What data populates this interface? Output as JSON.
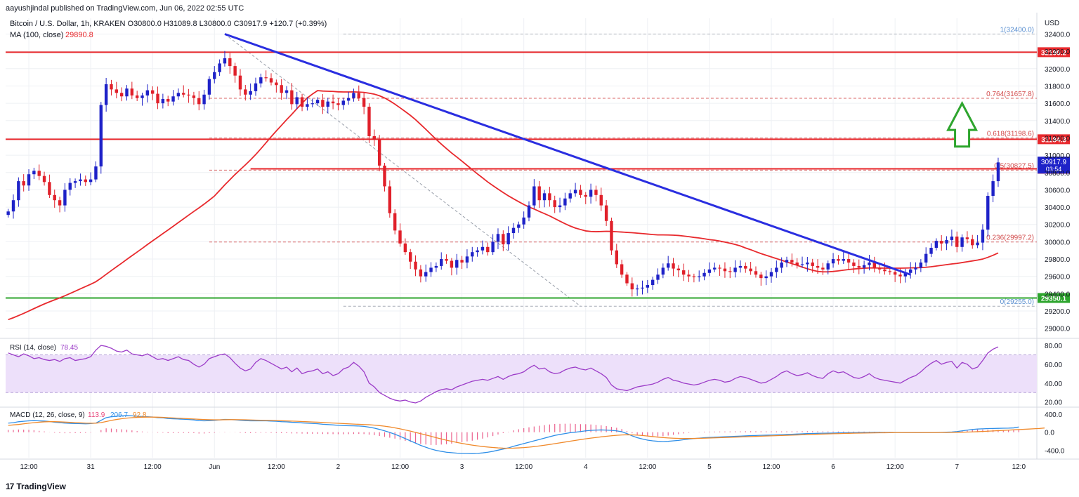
{
  "header": {
    "credit": "aayushjindal published on TradingView.com, Jun 06, 2022 02:55 UTC",
    "ohlc_text": "Bitcoin / U.S. Dollar, 1h, KRAKEN  O30800.0  H31089.8  L30800.0  C30917.9  +120.7 (+0.39%)",
    "ma_label": "MA (100, close)",
    "ma_value": "29890.8"
  },
  "footer": {
    "brand": "TradingView",
    "logo_glyph": "17"
  },
  "colors": {
    "up": "#1e22c8",
    "down": "#e0202a",
    "ma": "#e8292d",
    "trend": "#2a2ee0",
    "resistance": "#e8292d",
    "support": "#2ea52e",
    "fib": "#d24b4b",
    "rsi": "#9c3cc8",
    "rsi_band": "#ede0fa",
    "macd": "#2f8fe8",
    "signal": "#f08a2c",
    "hist": "#e8457a",
    "arrow": "#2ea52e"
  },
  "chart_data": [
    {
      "type": "candlestick",
      "title": "Bitcoin / U.S. Dollar, 1h, KRAKEN",
      "currency_label": "USD",
      "y_axis_ticks": [
        "32400.0",
        "32200.0",
        "32000.0",
        "31800.0",
        "31600.0",
        "31400.0",
        "31200.0",
        "31000.0",
        "30800.0",
        "30600.0",
        "30400.0",
        "30200.0",
        "30000.0",
        "29800.0",
        "29600.0",
        "29400.0",
        "29200.0",
        "29000.0"
      ],
      "ylim": [
        28900,
        32550
      ],
      "x_axis_ticks": [
        "12:00",
        "31",
        "12:00",
        "Jun",
        "12:00",
        "2",
        "12:00",
        "3",
        "12:00",
        "4",
        "12:00",
        "5",
        "12:00",
        "6",
        "12:00",
        "7",
        "12:0"
      ],
      "x_tick_slots": [
        4,
        16,
        28,
        40,
        52,
        64,
        76,
        88,
        100,
        112,
        124,
        136,
        148,
        160,
        172,
        184,
        196
      ],
      "slot_count": 200,
      "close_series": [
        30350,
        30480,
        30700,
        30650,
        30780,
        30820,
        30760,
        30690,
        30540,
        30480,
        30420,
        30600,
        30680,
        30700,
        30720,
        30690,
        30720,
        30870,
        31580,
        31820,
        31760,
        31720,
        31680,
        31770,
        31690,
        31660,
        31690,
        31750,
        31710,
        31600,
        31650,
        31620,
        31680,
        31720,
        31700,
        31690,
        31660,
        31590,
        31700,
        31880,
        31960,
        32060,
        32120,
        32030,
        31920,
        31760,
        31700,
        31740,
        31830,
        31900,
        31890,
        31840,
        31810,
        31720,
        31750,
        31590,
        31670,
        31560,
        31590,
        31600,
        31640,
        31560,
        31620,
        31600,
        31580,
        31630,
        31660,
        31720,
        31660,
        31560,
        31220,
        31180,
        30880,
        30640,
        30330,
        30130,
        29980,
        29880,
        29770,
        29680,
        29600,
        29650,
        29700,
        29720,
        29800,
        29780,
        29700,
        29790,
        29760,
        29830,
        29880,
        29900,
        29940,
        29880,
        30000,
        30090,
        29970,
        30100,
        30160,
        30200,
        30280,
        30420,
        30640,
        30480,
        30560,
        30480,
        30400,
        30420,
        30500,
        30560,
        30600,
        30540,
        30520,
        30600,
        30540,
        30420,
        30240,
        29900,
        29740,
        29620,
        29520,
        29450,
        29460,
        29470,
        29500,
        29560,
        29620,
        29700,
        29750,
        29690,
        29670,
        29620,
        29600,
        29590,
        29600,
        29640,
        29680,
        29700,
        29690,
        29660,
        29650,
        29700,
        29720,
        29690,
        29660,
        29620,
        29580,
        29600,
        29650,
        29700,
        29760,
        29790,
        29760,
        29730,
        29740,
        29760,
        29720,
        29700,
        29680,
        29750,
        29800,
        29780,
        29800,
        29760,
        29720,
        29700,
        29730,
        29760,
        29700,
        29680,
        29660,
        29650,
        29620,
        29600,
        29640,
        29680,
        29700,
        29760,
        29860,
        29930,
        30010,
        29980,
        30020,
        30060,
        29940,
        30050,
        30030,
        29960,
        29990,
        30140,
        30530,
        30700,
        30917
      ],
      "ma_label": "MA (100, close)",
      "ma_value": "29890.8",
      "horizontal_levels": [
        {
          "value": 32190.2,
          "label": "32190.2",
          "style": "resistance"
        },
        {
          "value": 31184.3,
          "label": "31184.3",
          "style": "resistance"
        },
        {
          "value": 30842.9,
          "label": "30842.9",
          "style": "resistance"
        },
        {
          "value": 29350.1,
          "label": "29350.1",
          "style": "support"
        }
      ],
      "current_price": {
        "value": 30917.9,
        "label": "30917.9",
        "countdown": "03:54"
      },
      "fib_levels": [
        {
          "value": 32400.0,
          "label": "1(32400.0)"
        },
        {
          "value": 31657.8,
          "label": "0.764(31657.8)"
        },
        {
          "value": 31198.6,
          "label": "0.618(31198.6)"
        },
        {
          "value": 30827.5,
          "label": "0.5(30827.5)"
        },
        {
          "value": 29997.2,
          "label": "0.236(29997.2)"
        },
        {
          "value": 29255.0,
          "label": "0(29255.0)"
        }
      ],
      "trendline": {
        "from": {
          "slot": 42,
          "value": 32400
        },
        "to": {
          "slot": 175,
          "value": 29620
        }
      },
      "arrow": {
        "slot": 185,
        "from": 31100,
        "to": 31600,
        "direction": "up"
      }
    },
    {
      "type": "line",
      "name": "rsi",
      "label": "RSI (14, close)",
      "value": "78.45",
      "y_axis_ticks": [
        "80.00",
        "60.00",
        "40.00",
        "20.00"
      ],
      "ylim": [
        16,
        86
      ],
      "band": [
        30,
        70
      ],
      "values": [
        72,
        70,
        68,
        71,
        69,
        66,
        67,
        65,
        64,
        65,
        63,
        66,
        67,
        64,
        65,
        66,
        68,
        75,
        80,
        79,
        77,
        74,
        73,
        75,
        71,
        70,
        69,
        71,
        68,
        65,
        66,
        64,
        66,
        68,
        65,
        64,
        60,
        57,
        60,
        66,
        68,
        70,
        71,
        67,
        61,
        56,
        53,
        55,
        62,
        66,
        64,
        61,
        58,
        55,
        57,
        52,
        56,
        50,
        52,
        53,
        55,
        50,
        52,
        48,
        50,
        55,
        57,
        62,
        58,
        52,
        40,
        36,
        30,
        27,
        24,
        22,
        21,
        22,
        20,
        19,
        21,
        25,
        28,
        31,
        33,
        34,
        33,
        36,
        38,
        40,
        42,
        43,
        44,
        43,
        45,
        47,
        44,
        47,
        49,
        50,
        52,
        56,
        59,
        55,
        56,
        52,
        50,
        51,
        54,
        56,
        57,
        55,
        54,
        56,
        53,
        50,
        46,
        38,
        34,
        33,
        32,
        34,
        36,
        37,
        38,
        39,
        41,
        44,
        46,
        43,
        42,
        40,
        39,
        38,
        39,
        41,
        43,
        44,
        43,
        41,
        42,
        45,
        47,
        46,
        44,
        42,
        40,
        41,
        44,
        47,
        51,
        53,
        50,
        48,
        49,
        51,
        48,
        46,
        45,
        50,
        53,
        51,
        52,
        49,
        46,
        45,
        47,
        50,
        46,
        44,
        43,
        42,
        41,
        40,
        43,
        46,
        48,
        52,
        57,
        61,
        64,
        60,
        62,
        63,
        56,
        62,
        60,
        55,
        57,
        64,
        72,
        76,
        78.45
      ]
    },
    {
      "type": "line",
      "name": "macd",
      "label": "MACD (12, 26, close, 9)",
      "values_text": [
        "113.9",
        "206.7",
        "92.8"
      ],
      "y_axis_ticks": [
        "400.0",
        "0.0",
        "-400.0"
      ],
      "ylim": [
        -560,
        520
      ],
      "macd": [
        200,
        210,
        230,
        240,
        250,
        255,
        250,
        245,
        235,
        220,
        210,
        200,
        195,
        190,
        188,
        185,
        190,
        200,
        260,
        320,
        340,
        350,
        360,
        365,
        360,
        350,
        345,
        340,
        335,
        320,
        315,
        300,
        295,
        290,
        285,
        280,
        270,
        255,
        250,
        255,
        260,
        270,
        280,
        278,
        272,
        262,
        255,
        250,
        250,
        252,
        250,
        245,
        240,
        232,
        228,
        218,
        214,
        205,
        198,
        192,
        186,
        175,
        168,
        160,
        152,
        146,
        142,
        140,
        136,
        128,
        110,
        90,
        62,
        30,
        -5,
        -45,
        -90,
        -140,
        -190,
        -240,
        -290,
        -330,
        -370,
        -400,
        -420,
        -440,
        -450,
        -460,
        -465,
        -468,
        -470,
        -465,
        -455,
        -440,
        -420,
        -395,
        -370,
        -345,
        -310,
        -280,
        -250,
        -220,
        -190,
        -160,
        -130,
        -100,
        -70,
        -50,
        -30,
        -10,
        0,
        15,
        30,
        40,
        45,
        50,
        45,
        40,
        30,
        10,
        -30,
        -80,
        -120,
        -150,
        -175,
        -190,
        -200,
        -205,
        -200,
        -190,
        -180,
        -165,
        -150,
        -140,
        -130,
        -120,
        -115,
        -110,
        -105,
        -100,
        -95,
        -90,
        -85,
        -80,
        -75,
        -72,
        -68,
        -65,
        -62,
        -58,
        -55,
        -50,
        -45,
        -40,
        -35,
        -30,
        -28,
        -25,
        -22,
        -20,
        -18,
        -15,
        -12,
        -10,
        -8,
        -6,
        -5,
        -4,
        -3,
        -3,
        -4,
        -5,
        -6,
        -7,
        -8,
        -9,
        -10,
        -10,
        -9,
        -8,
        -6,
        -3,
        0,
        5,
        15,
        30,
        45,
        60,
        70,
        75,
        80,
        82,
        85,
        88,
        90,
        95,
        113.9
      ],
      "signal": [
        150,
        160,
        170,
        185,
        198,
        210,
        220,
        228,
        232,
        232,
        228,
        222,
        216,
        210,
        205,
        200,
        198,
        199,
        212,
        235,
        260,
        280,
        296,
        310,
        320,
        326,
        330,
        332,
        332,
        330,
        326,
        320,
        314,
        308,
        302,
        296,
        290,
        284,
        278,
        274,
        272,
        272,
        274,
        276,
        276,
        275,
        272,
        269,
        266,
        264,
        262,
        260,
        256,
        252,
        248,
        244,
        240,
        235,
        230,
        225,
        220,
        214,
        208,
        202,
        196,
        190,
        184,
        179,
        174,
        169,
        164,
        155,
        145,
        132,
        116,
        96,
        74,
        50,
        24,
        -4,
        -32,
        -60,
        -90,
        -120,
        -148,
        -176,
        -200,
        -224,
        -246,
        -266,
        -284,
        -300,
        -314,
        -326,
        -336,
        -345,
        -350,
        -352,
        -350,
        -345,
        -338,
        -328,
        -316,
        -302,
        -286,
        -270,
        -252,
        -234,
        -216,
        -198,
        -180,
        -162,
        -146,
        -130,
        -116,
        -102,
        -90,
        -78,
        -68,
        -60,
        -56,
        -58,
        -64,
        -72,
        -84,
        -96,
        -108,
        -118,
        -126,
        -132,
        -136,
        -138,
        -138,
        -137,
        -135,
        -132,
        -128,
        -124,
        -120,
        -116,
        -112,
        -108,
        -104,
        -100,
        -96,
        -92,
        -88,
        -84,
        -80,
        -76,
        -72,
        -68,
        -64,
        -60,
        -56,
        -52,
        -48,
        -44,
        -40,
        -37,
        -34,
        -31,
        -28,
        -25,
        -22,
        -20,
        -18,
        -16,
        -14,
        -12,
        -11,
        -10,
        -9,
        -9,
        -9,
        -9,
        -9,
        -9,
        -9,
        -9,
        -8,
        -7,
        -6,
        -4,
        -2,
        0,
        3,
        7,
        12,
        17,
        22,
        28,
        34,
        40,
        46,
        52,
        58,
        64,
        70,
        76,
        82,
        92.8
      ]
    }
  ]
}
